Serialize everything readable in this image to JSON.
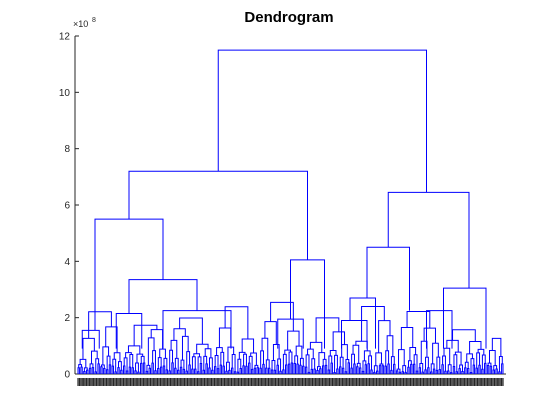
{
  "chart_data": {
    "type": "dendrogram",
    "title": "Dendrogram",
    "xlabel": "",
    "ylabel": "",
    "y_exponent_label": "×10",
    "y_exponent_power": "8",
    "ylim": [
      0,
      12
    ],
    "yticks": [
      0,
      2,
      4,
      6,
      8,
      10,
      12
    ],
    "ytick_labels": [
      "0",
      "2",
      "4",
      "6",
      "8",
      "10",
      "12"
    ],
    "line_color": "#0000ff",
    "grid": false,
    "leaf_count": 300,
    "leaf_labels_note_hidden": true,
    "major_links": [
      {
        "name": "root",
        "x": [
          0.33,
          0.82
        ],
        "height": 11.5
      },
      {
        "name": "left-main",
        "x": [
          0.12,
          0.54
        ],
        "height": 7.2
      },
      {
        "name": "right-main",
        "x": [
          0.73,
          0.92
        ],
        "height": 6.45
      },
      {
        "name": "left-sub-a",
        "x": [
          0.04,
          0.2
        ],
        "height": 5.5
      },
      {
        "name": "right-sub-a",
        "x": [
          0.68,
          0.78
        ],
        "height": 4.5
      },
      {
        "name": "left-mid-b",
        "x": [
          0.5,
          0.58
        ],
        "height": 4.05
      },
      {
        "name": "left-sub-c",
        "x": [
          0.12,
          0.28
        ],
        "height": 3.35
      },
      {
        "name": "right-sub-b",
        "x": [
          0.86,
          0.96
        ],
        "height": 3.05
      },
      {
        "name": "right-sub-c",
        "x": [
          0.64,
          0.7
        ],
        "height": 2.7
      },
      {
        "name": "left-sub-d",
        "x": [
          0.2,
          0.36
        ],
        "height": 2.25
      },
      {
        "name": "right-sub-d",
        "x": [
          0.82,
          0.88
        ],
        "height": 2.25
      },
      {
        "name": "left-sub-e",
        "x": [
          0.09,
          0.15
        ],
        "height": 2.15
      },
      {
        "name": "mid-sub-f",
        "x": [
          0.47,
          0.53
        ],
        "height": 1.95
      },
      {
        "name": "right-sub-f",
        "x": [
          0.62,
          0.68
        ],
        "height": 1.9
      },
      {
        "name": "left-sub-g",
        "x": [
          0.01,
          0.05
        ],
        "height": 1.55
      }
    ]
  }
}
